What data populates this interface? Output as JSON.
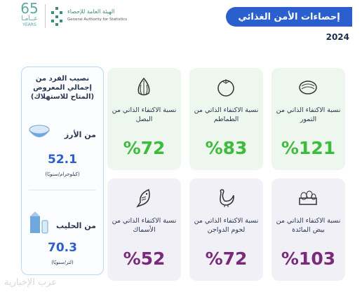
{
  "header": {
    "logo_years": "65",
    "logo_arabic": "عــامـا",
    "logo_years_en": "YEARS",
    "authority_ar": "الهيئة العامة للإحصاء",
    "authority_en": "General Authority for Statistics",
    "title": "إحصاءات الأمن الغذائي",
    "year": "2024"
  },
  "side_panel": {
    "title": "نصيب الفرد من إجمالي المعروض (المتاح للاستهلاك)",
    "items": [
      {
        "label": "من الأرز",
        "value": "52.1",
        "unit": "(كيلوجرام/سنويًا)"
      },
      {
        "label": "من الحليب",
        "value": "70.3",
        "unit": "(لتر/سنويًا)"
      }
    ]
  },
  "cards": [
    {
      "label": "نسبة الاكتفاء الذاتي من التمور",
      "value": "%121"
    },
    {
      "label": "نسبة الاكتفاء الذاتي من الطماطم",
      "value": "%83"
    },
    {
      "label": "نسبة الاكتفاء الذاتي من البصل",
      "value": "%72"
    },
    {
      "label": "نسبة الاكتفاء الذاتي من بيض المائدة",
      "value": "%103"
    },
    {
      "label": "نسبة الاكتفاء الذاتي من لحوم الدواجن",
      "value": "%72"
    },
    {
      "label": "نسبة الاكتفاء الذاتي من الأسماك",
      "value": "%52"
    }
  ],
  "watermark": "عرب الإخبارية"
}
